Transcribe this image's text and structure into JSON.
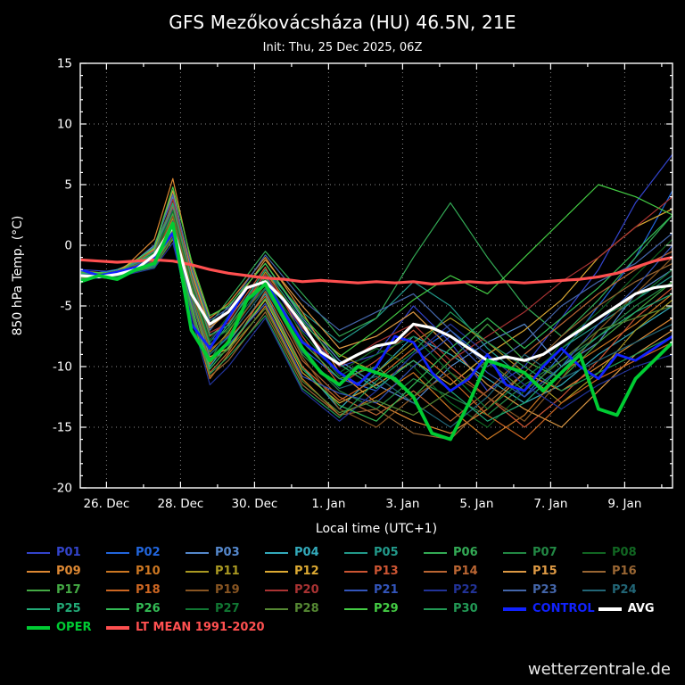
{
  "title": "GFS Mezőkovácsháza (HU) 46.5N, 21E",
  "subtitle": "Init: Thu, 25 Dec 2025, 06Z",
  "watermark": "wetterzentrale.de",
  "chart_data": {
    "type": "line",
    "title": "GFS Mezőkovácsháza (HU) 46.5N, 21E",
    "subtitle": "Init: Thu, 25 Dec 2025, 06Z",
    "xlabel": "Local time (UTC+1)",
    "ylabel": "850 hPa Temp. (°C)",
    "ylim": [
      -20,
      15
    ],
    "yticks": [
      15,
      10,
      5,
      0,
      -5,
      -10,
      -15,
      -20
    ],
    "grid": "dotted",
    "background": "#000000",
    "x_axis": {
      "unit": "forecast hours since init (25 Dec 2025 06Z), plotted in local time UTC+1",
      "min": 0,
      "max": 384,
      "tick_hours": [
        17,
        65,
        113,
        161,
        209,
        257,
        305,
        353
      ],
      "tick_labels": [
        "26. Dec",
        "28. Dec",
        "30. Dec",
        "1. Jan",
        "3. Jan",
        "5. Jan",
        "7. Jan",
        "9. Jan"
      ]
    },
    "member_hours": [
      0,
      24,
      48,
      60,
      72,
      84,
      96,
      120,
      144,
      168,
      192,
      216,
      240,
      264,
      288,
      312,
      336,
      360,
      384
    ],
    "main_hours": [
      0,
      12,
      24,
      36,
      48,
      60,
      72,
      84,
      96,
      108,
      120,
      132,
      144,
      156,
      168,
      180,
      192,
      204,
      216,
      228,
      240,
      252,
      264,
      276,
      288,
      300,
      312,
      324,
      336,
      348,
      360,
      372,
      384
    ],
    "members": [
      {
        "name": "P01",
        "color": "#3344cc",
        "values": [
          -2.0,
          -2.2,
          -0.5,
          3.0,
          -3.0,
          -8.0,
          -6.0,
          -2.5,
          -7.0,
          -10.0,
          -9.0,
          -5.0,
          -8.0,
          -12.0,
          -10.0,
          -6.0,
          -2.0,
          3.5,
          7.5
        ]
      },
      {
        "name": "P02",
        "color": "#2266dd",
        "values": [
          -2.5,
          -2.0,
          -1.0,
          2.0,
          -4.0,
          -9.0,
          -7.5,
          -3.0,
          -8.5,
          -11.0,
          -12.0,
          -9.0,
          -7.0,
          -9.5,
          -12.5,
          -9.0,
          -5.0,
          -1.0,
          4.5
        ]
      },
      {
        "name": "P03",
        "color": "#5588cc",
        "values": [
          -2.2,
          -2.5,
          0.0,
          4.0,
          -2.5,
          -7.0,
          -5.0,
          -1.5,
          -6.0,
          -9.5,
          -11.5,
          -13.0,
          -10.0,
          -8.0,
          -6.5,
          -10.0,
          -8.0,
          -4.0,
          -2.0
        ]
      },
      {
        "name": "P04",
        "color": "#33aabb",
        "values": [
          -2.8,
          -2.0,
          -0.8,
          1.5,
          -5.0,
          -10.0,
          -8.0,
          -4.0,
          -10.0,
          -13.5,
          -10.5,
          -7.5,
          -9.0,
          -11.0,
          -13.0,
          -11.5,
          -9.0,
          -7.0,
          -5.0
        ]
      },
      {
        "name": "P05",
        "color": "#22998a",
        "values": [
          -2.4,
          -2.6,
          -1.2,
          2.5,
          -3.5,
          -8.5,
          -6.5,
          -2.0,
          -5.5,
          -8.0,
          -6.0,
          -3.0,
          -5.0,
          -8.5,
          -11.0,
          -8.5,
          -6.5,
          -4.5,
          -2.5
        ]
      },
      {
        "name": "P06",
        "color": "#33aa55",
        "values": [
          -2.6,
          -2.3,
          -0.2,
          3.5,
          -2.0,
          -6.5,
          -4.5,
          -0.5,
          -4.0,
          -7.5,
          -6.0,
          -1.0,
          3.5,
          -1.0,
          -5.0,
          -7.5,
          -4.5,
          -1.0,
          2.5
        ]
      },
      {
        "name": "P07",
        "color": "#228844",
        "values": [
          -2.3,
          -2.7,
          -1.5,
          1.0,
          -4.5,
          -9.5,
          -7.0,
          -3.5,
          -9.0,
          -12.0,
          -13.5,
          -11.0,
          -12.5,
          -14.0,
          -11.5,
          -9.5,
          -7.5,
          -5.0,
          -3.0
        ]
      },
      {
        "name": "P08",
        "color": "#116622",
        "values": [
          -2.7,
          -2.1,
          -0.6,
          2.8,
          -3.2,
          -7.8,
          -5.8,
          -2.8,
          -7.8,
          -10.5,
          -8.5,
          -10.0,
          -13.0,
          -15.0,
          -12.0,
          -8.0,
          -5.5,
          -2.5,
          0.5
        ]
      },
      {
        "name": "P09",
        "color": "#dd8833",
        "values": [
          -2.1,
          -2.4,
          0.5,
          5.5,
          -1.5,
          -6.0,
          -4.8,
          -1.0,
          -5.5,
          -10.5,
          -13.0,
          -14.5,
          -15.5,
          -13.5,
          -10.5,
          -12.0,
          -10.0,
          -8.0,
          -6.0
        ]
      },
      {
        "name": "P10",
        "color": "#cc7722",
        "values": [
          -2.9,
          -2.2,
          -1.8,
          0.5,
          -5.5,
          -11.0,
          -9.0,
          -5.0,
          -11.0,
          -14.0,
          -12.5,
          -10.5,
          -13.5,
          -16.0,
          -14.0,
          -10.5,
          -8.5,
          -6.5,
          -4.0
        ]
      },
      {
        "name": "P11",
        "color": "#aa9922",
        "values": [
          -2.5,
          -2.8,
          -0.9,
          2.2,
          -3.8,
          -8.8,
          -7.2,
          -2.2,
          -6.5,
          -9.0,
          -10.5,
          -8.0,
          -6.0,
          -8.0,
          -10.5,
          -13.0,
          -10.5,
          -7.0,
          -4.5
        ]
      },
      {
        "name": "P12",
        "color": "#ddaa33",
        "values": [
          -2.2,
          -2.6,
          -1.1,
          1.8,
          -4.2,
          -9.2,
          -8.5,
          -4.5,
          -10.5,
          -13.0,
          -11.5,
          -9.5,
          -11.5,
          -9.0,
          -7.0,
          -4.5,
          -1.0,
          1.5,
          3.0
        ]
      },
      {
        "name": "P13",
        "color": "#cc5533",
        "values": [
          -2.6,
          -2.3,
          -0.4,
          3.2,
          -2.8,
          -7.5,
          -6.2,
          -1.8,
          -7.5,
          -11.5,
          -9.5,
          -7.0,
          -10.0,
          -12.5,
          -15.0,
          -12.5,
          -9.5,
          -6.0,
          -3.5
        ]
      },
      {
        "name": "P14",
        "color": "#bb6633",
        "values": [
          -2.4,
          -2.5,
          -1.4,
          1.2,
          -4.8,
          -10.5,
          -8.8,
          -3.8,
          -9.5,
          -12.5,
          -14.0,
          -12.0,
          -14.5,
          -12.0,
          -9.0,
          -6.5,
          -4.0,
          -2.0,
          -0.5
        ]
      },
      {
        "name": "P15",
        "color": "#dd9944",
        "values": [
          -2.8,
          -2.1,
          -0.3,
          4.5,
          -2.2,
          -6.8,
          -5.5,
          -1.2,
          -5.0,
          -8.5,
          -7.5,
          -5.5,
          -8.5,
          -11.5,
          -13.5,
          -15.0,
          -12.0,
          -9.0,
          -7.0
        ]
      },
      {
        "name": "P16",
        "color": "#996633",
        "values": [
          -2.3,
          -2.7,
          -1.6,
          0.8,
          -5.2,
          -10.8,
          -9.5,
          -5.5,
          -11.5,
          -14.0,
          -13.5,
          -15.5,
          -16.0,
          -13.0,
          -10.5,
          -7.5,
          -5.0,
          -3.0,
          -1.5
        ]
      },
      {
        "name": "P17",
        "color": "#44aa44",
        "values": [
          -2.5,
          -2.2,
          -0.7,
          2.6,
          -3.4,
          -8.2,
          -6.8,
          -2.6,
          -8.0,
          -11.0,
          -10.0,
          -12.5,
          -9.5,
          -6.5,
          -9.5,
          -11.0,
          -8.0,
          -5.5,
          -3.0
        ]
      },
      {
        "name": "P18",
        "color": "#cc6622",
        "values": [
          -2.7,
          -2.4,
          -1.3,
          1.6,
          -4.4,
          -9.8,
          -7.8,
          -4.2,
          -10.0,
          -12.8,
          -11.0,
          -8.5,
          -11.0,
          -14.0,
          -16.0,
          -13.0,
          -11.0,
          -9.5,
          -8.0
        ]
      },
      {
        "name": "P19",
        "color": "#885522",
        "values": [
          -2.2,
          -2.8,
          -1.0,
          2.4,
          -3.6,
          -8.6,
          -7.4,
          -3.2,
          -9.2,
          -13.5,
          -15.0,
          -12.5,
          -10.5,
          -12.5,
          -14.5,
          -11.0,
          -7.0,
          -4.0,
          -1.0
        ]
      },
      {
        "name": "P20",
        "color": "#aa3333",
        "values": [
          -2.6,
          -2.5,
          -0.8,
          3.8,
          -2.4,
          -7.2,
          -6.4,
          -2.4,
          -6.8,
          -10.0,
          -8.0,
          -6.5,
          -9.5,
          -7.5,
          -5.5,
          -3.0,
          -1.0,
          1.5,
          4.0
        ]
      },
      {
        "name": "P21",
        "color": "#3355bb",
        "values": [
          -2.4,
          -2.3,
          -1.7,
          1.4,
          -4.6,
          -9.4,
          -8.2,
          -4.8,
          -10.8,
          -12.2,
          -13.0,
          -10.0,
          -7.5,
          -10.5,
          -12.5,
          -10.0,
          -6.5,
          -3.5,
          0.0
        ]
      },
      {
        "name": "P22",
        "color": "#223399",
        "values": [
          -2.8,
          -2.6,
          -1.9,
          0.2,
          -5.8,
          -11.5,
          -10.0,
          -6.0,
          -12.0,
          -14.5,
          -12.0,
          -9.0,
          -6.5,
          -9.0,
          -11.5,
          -13.5,
          -11.5,
          -10.0,
          -9.0
        ]
      },
      {
        "name": "P23",
        "color": "#4466aa",
        "values": [
          -2.1,
          -2.5,
          -0.1,
          4.2,
          -1.8,
          -6.2,
          -5.2,
          -0.8,
          -4.5,
          -7.0,
          -5.5,
          -4.0,
          -7.0,
          -10.0,
          -8.0,
          -5.0,
          -3.0,
          -1.5,
          1.0
        ]
      },
      {
        "name": "P24",
        "color": "#226677",
        "values": [
          -2.5,
          -2.7,
          -1.2,
          2.0,
          -4.0,
          -9.0,
          -7.6,
          -3.6,
          -8.8,
          -11.8,
          -10.8,
          -13.0,
          -15.0,
          -12.5,
          -9.0,
          -11.0,
          -9.5,
          -8.0,
          -6.5
        ]
      },
      {
        "name": "P25",
        "color": "#22aa77",
        "values": [
          -2.3,
          -2.4,
          -0.5,
          3.4,
          -2.6,
          -7.4,
          -6.6,
          -2.0,
          -6.2,
          -9.8,
          -11.8,
          -9.5,
          -12.0,
          -14.5,
          -13.0,
          -10.0,
          -7.5,
          -5.5,
          -4.0
        ]
      },
      {
        "name": "P26",
        "color": "#33bb55",
        "values": [
          -2.7,
          -2.2,
          -1.5,
          1.0,
          -5.0,
          -10.2,
          -8.4,
          -4.4,
          -10.2,
          -13.2,
          -14.5,
          -11.5,
          -8.5,
          -6.0,
          -8.5,
          -6.0,
          -3.5,
          -0.5,
          2.5
        ]
      },
      {
        "name": "P27",
        "color": "#117733",
        "values": [
          -2.4,
          -2.6,
          -0.9,
          2.9,
          -3.1,
          -7.9,
          -7.0,
          -3.0,
          -7.2,
          -10.8,
          -9.0,
          -7.5,
          -10.5,
          -13.5,
          -11.0,
          -8.5,
          -6.0,
          -4.5,
          -2.0
        ]
      },
      {
        "name": "P28",
        "color": "#558833",
        "values": [
          -2.6,
          -2.1,
          -1.1,
          1.9,
          -4.3,
          -9.6,
          -8.6,
          -5.2,
          -11.2,
          -13.8,
          -12.8,
          -14.0,
          -12.0,
          -9.5,
          -12.0,
          -9.5,
          -7.0,
          -6.0,
          -5.0
        ]
      },
      {
        "name": "P29",
        "color": "#44cc44",
        "values": [
          -2.2,
          -2.3,
          -0.2,
          4.8,
          -1.2,
          -5.8,
          -5.0,
          -1.5,
          -5.8,
          -9.2,
          -7.0,
          -4.5,
          -2.5,
          -4.0,
          -1.0,
          2.0,
          5.0,
          4.0,
          2.5
        ]
      },
      {
        "name": "P30",
        "color": "#229955",
        "values": [
          -2.8,
          -2.5,
          -1.8,
          0.6,
          -5.4,
          -10.6,
          -9.2,
          -5.8,
          -11.8,
          -14.2,
          -11.2,
          -8.8,
          -5.5,
          -8.0,
          -10.0,
          -12.0,
          -10.5,
          -9.0,
          -7.5
        ]
      }
    ],
    "highlights": {
      "control": {
        "name": "CONTROL",
        "color": "#1122ff",
        "width": 2.8,
        "values": [
          -2.0,
          -2.5,
          -2.2,
          -1.8,
          -1.0,
          1.0,
          -6.5,
          -8.5,
          -6.0,
          -3.5,
          -3.0,
          -5.5,
          -8.0,
          -9.0,
          -10.5,
          -11.5,
          -10.0,
          -7.5,
          -8.0,
          -10.5,
          -12.0,
          -11.0,
          -9.0,
          -11.5,
          -12.0,
          -10.0,
          -8.5,
          -10.0,
          -11.0,
          -9.0,
          -9.5,
          -8.5,
          -7.5
        ]
      },
      "avg": {
        "name": "AVG",
        "color": "#ffffff",
        "width": 3.2,
        "values": [
          -2.5,
          -2.6,
          -2.4,
          -2.0,
          -0.8,
          1.5,
          -4.0,
          -6.5,
          -5.5,
          -3.5,
          -3.0,
          -4.5,
          -6.5,
          -8.8,
          -9.8,
          -9.0,
          -8.3,
          -8.0,
          -6.5,
          -6.8,
          -7.5,
          -8.5,
          -9.5,
          -9.2,
          -9.5,
          -9.0,
          -8.0,
          -7.0,
          -6.0,
          -5.0,
          -4.0,
          -3.5,
          -3.3
        ]
      },
      "oper": {
        "name": "OPER",
        "color": "#00cc33",
        "width": 3.8,
        "values": [
          -3.0,
          -2.5,
          -2.8,
          -2.0,
          -1.5,
          1.8,
          -7.0,
          -9.5,
          -8.0,
          -4.5,
          -3.2,
          -6.0,
          -8.5,
          -10.5,
          -11.5,
          -10.0,
          -10.5,
          -11.0,
          -12.5,
          -15.5,
          -16.0,
          -13.0,
          -9.5,
          -10.0,
          -10.5,
          -12.0,
          -10.5,
          -9.0,
          -13.5,
          -14.0,
          -11.0,
          -9.5,
          -8.0
        ]
      },
      "ltmean": {
        "name": "LT MEAN 1991-2020",
        "color": "#ff5050",
        "width": 3.2,
        "values": [
          -1.2,
          -1.3,
          -1.4,
          -1.3,
          -1.2,
          -1.3,
          -1.6,
          -2.0,
          -2.3,
          -2.5,
          -2.7,
          -2.8,
          -3.0,
          -2.9,
          -3.0,
          -3.1,
          -3.0,
          -3.1,
          -3.0,
          -3.2,
          -3.1,
          -3.0,
          -3.1,
          -3.0,
          -3.1,
          -3.0,
          -2.9,
          -2.8,
          -2.6,
          -2.3,
          -1.8,
          -1.3,
          -1.0
        ]
      }
    },
    "legend_position": "bottom"
  }
}
